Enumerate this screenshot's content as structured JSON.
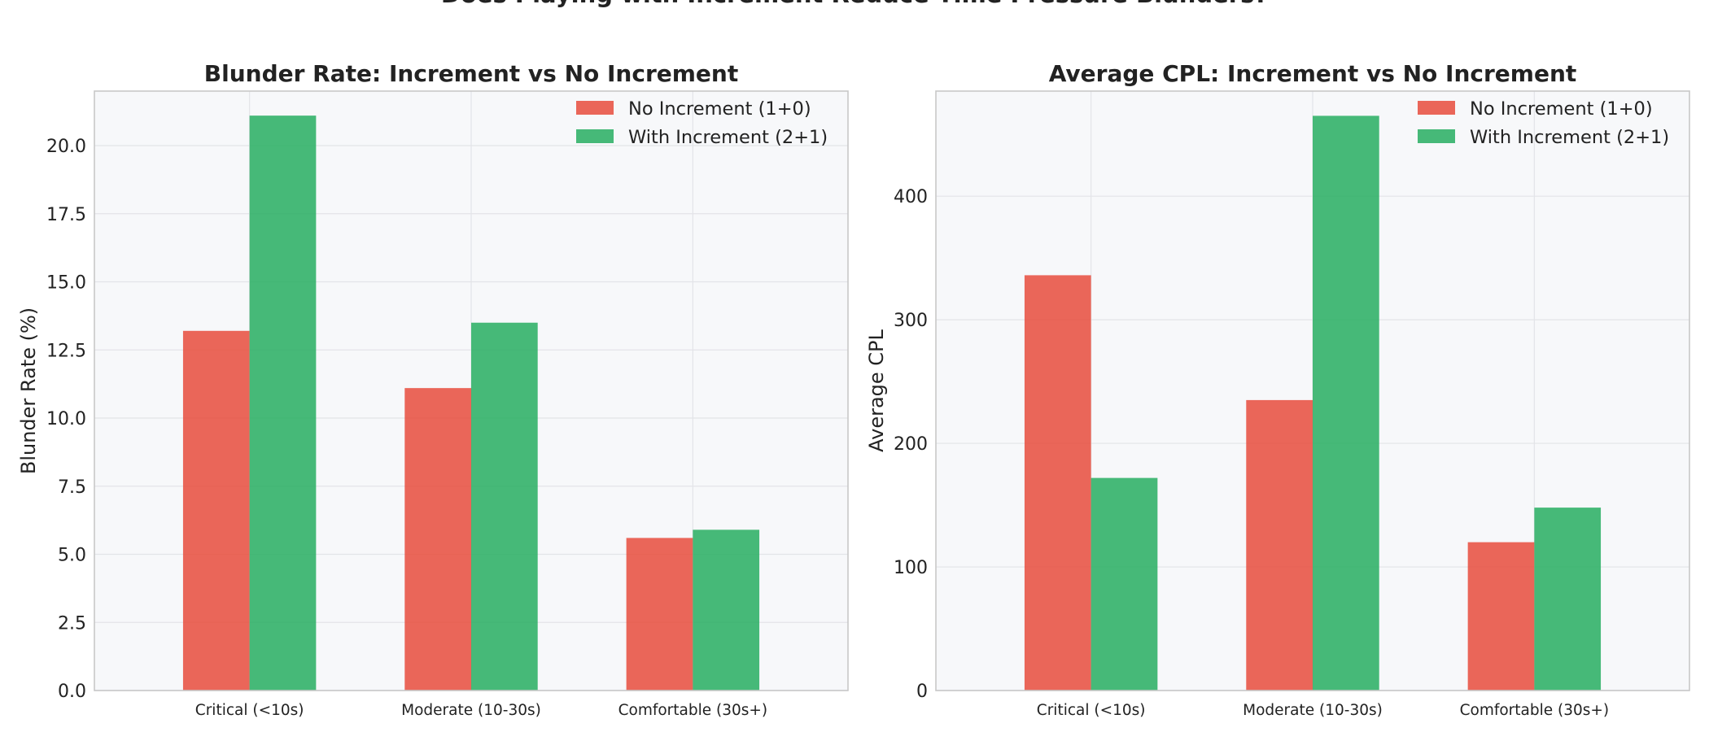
{
  "suptitle": "Does Playing with Increment Reduce Time Pressure Blunders?",
  "colors": {
    "no_increment": "#e74c3c",
    "with_increment": "#27ae60",
    "plot_bg": "#f7f8fa",
    "grid": "#e3e4e8",
    "frame": "#c8c8c8"
  },
  "chart_data": [
    {
      "type": "bar",
      "title": "Blunder Rate: Increment vs No Increment",
      "xlabel": "",
      "ylabel": "Blunder Rate (%)",
      "categories": [
        "Critical (<10s)",
        "Moderate (10-30s)",
        "Comfortable (30s+)"
      ],
      "series": [
        {
          "name": "No Increment (1+0)",
          "values": [
            13.2,
            11.1,
            5.6
          ]
        },
        {
          "name": "With Increment (2+1)",
          "values": [
            21.1,
            13.5,
            5.9
          ]
        }
      ],
      "ylim": [
        0,
        22
      ],
      "yticks": [
        0,
        2.5,
        5,
        7.5,
        10,
        12.5,
        15,
        17.5,
        20
      ],
      "ytick_labels": [
        "0.0",
        "2.5",
        "5.0",
        "7.5",
        "10.0",
        "12.5",
        "15.0",
        "17.5",
        "20.0"
      ],
      "grid": true,
      "legend": "top-right"
    },
    {
      "type": "bar",
      "title": "Average CPL: Increment vs No Increment",
      "xlabel": "",
      "ylabel": "Average CPL",
      "categories": [
        "Critical (<10s)",
        "Moderate (10-30s)",
        "Comfortable (30s+)"
      ],
      "series": [
        {
          "name": "No Increment (1+0)",
          "values": [
            336,
            235,
            120
          ]
        },
        {
          "name": "With Increment (2+1)",
          "values": [
            172,
            465,
            148
          ]
        }
      ],
      "ylim": [
        0,
        485
      ],
      "yticks": [
        0,
        100,
        200,
        300,
        400
      ],
      "ytick_labels": [
        "0",
        "100",
        "200",
        "300",
        "400"
      ],
      "grid": true,
      "legend": "top-right"
    }
  ]
}
